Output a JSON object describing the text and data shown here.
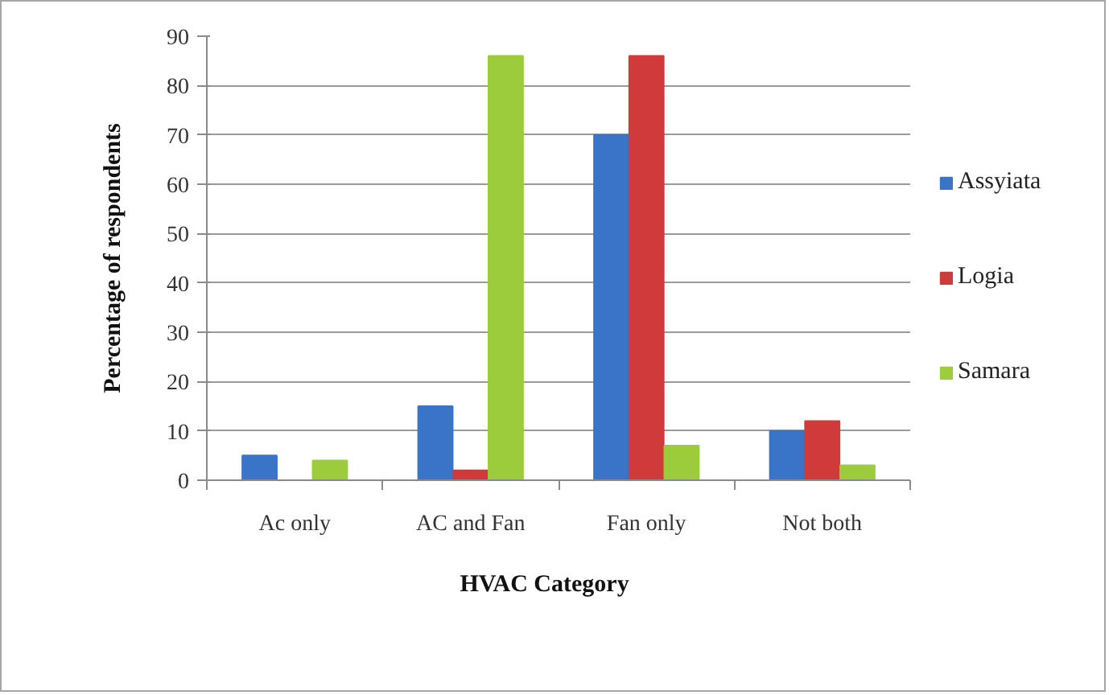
{
  "chart_data": {
    "type": "bar",
    "xlabel": "HVAC Category",
    "ylabel": "Percentage of respondents",
    "categories": [
      "Ac only",
      "AC and Fan",
      "Fan only",
      "Not both"
    ],
    "series": [
      {
        "name": "Assyiata",
        "color": "#3a74c8",
        "values": [
          5,
          15,
          70,
          10
        ]
      },
      {
        "name": "Logia",
        "color": "#d13a3a",
        "values": [
          0,
          2,
          86,
          12
        ]
      },
      {
        "name": "Samara",
        "color": "#9ccc3c",
        "values": [
          4,
          86,
          7,
          3
        ]
      }
    ],
    "ylim": [
      0,
      90
    ],
    "yticks": [
      0,
      10,
      20,
      30,
      40,
      50,
      60,
      70,
      80,
      90
    ],
    "grid": "y",
    "legend": "right"
  }
}
